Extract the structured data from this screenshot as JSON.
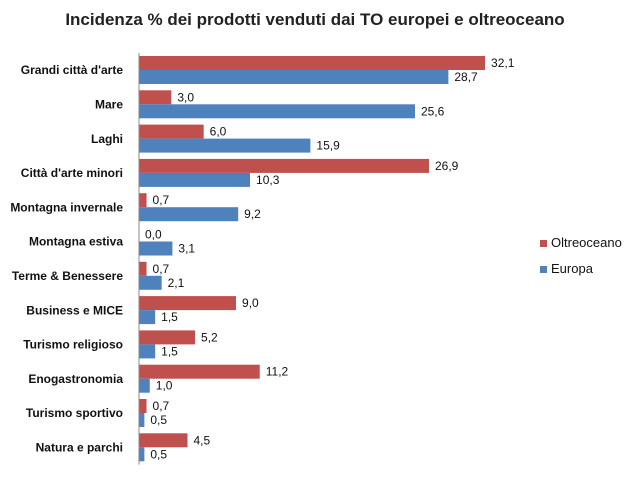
{
  "chart_data": {
    "type": "bar",
    "orientation": "horizontal",
    "title": "Incidenza % dei prodotti venduti dai TO  europei e oltreoceano",
    "categories": [
      "Grandi città d'arte",
      "Mare",
      "Laghi",
      "Città d'arte minori",
      "Montagna invernale",
      "Montagna estiva",
      "Terme & Benessere",
      "Business e MICE",
      "Turismo religioso",
      "Enogastronomia",
      "Turismo sportivo",
      "Natura e parchi"
    ],
    "series": [
      {
        "name": "Oltreoceano",
        "color": "#c0504d",
        "values": [
          32.1,
          3.0,
          6.0,
          26.9,
          0.7,
          0.0,
          0.7,
          9.0,
          5.2,
          11.2,
          0.7,
          4.5
        ],
        "labels": [
          "32,1",
          "3,0",
          "6,0",
          "26,9",
          "0,7",
          "0,0",
          "0,7",
          "9,0",
          "5,2",
          "11,2",
          "0,7",
          "4,5"
        ]
      },
      {
        "name": "Europa",
        "color": "#4f81bd",
        "values": [
          28.7,
          25.6,
          15.9,
          10.3,
          9.2,
          3.1,
          2.1,
          1.5,
          1.5,
          1.0,
          0.5,
          0.5
        ],
        "labels": [
          "28,7",
          "25,6",
          "15,9",
          "10,3",
          "9,2",
          "3,1",
          "2,1",
          "1,5",
          "1,5",
          "1,0",
          "0,5",
          "0,5"
        ]
      }
    ],
    "xlim": [
      0,
      35
    ],
    "grid": false,
    "legend_position": "right"
  }
}
